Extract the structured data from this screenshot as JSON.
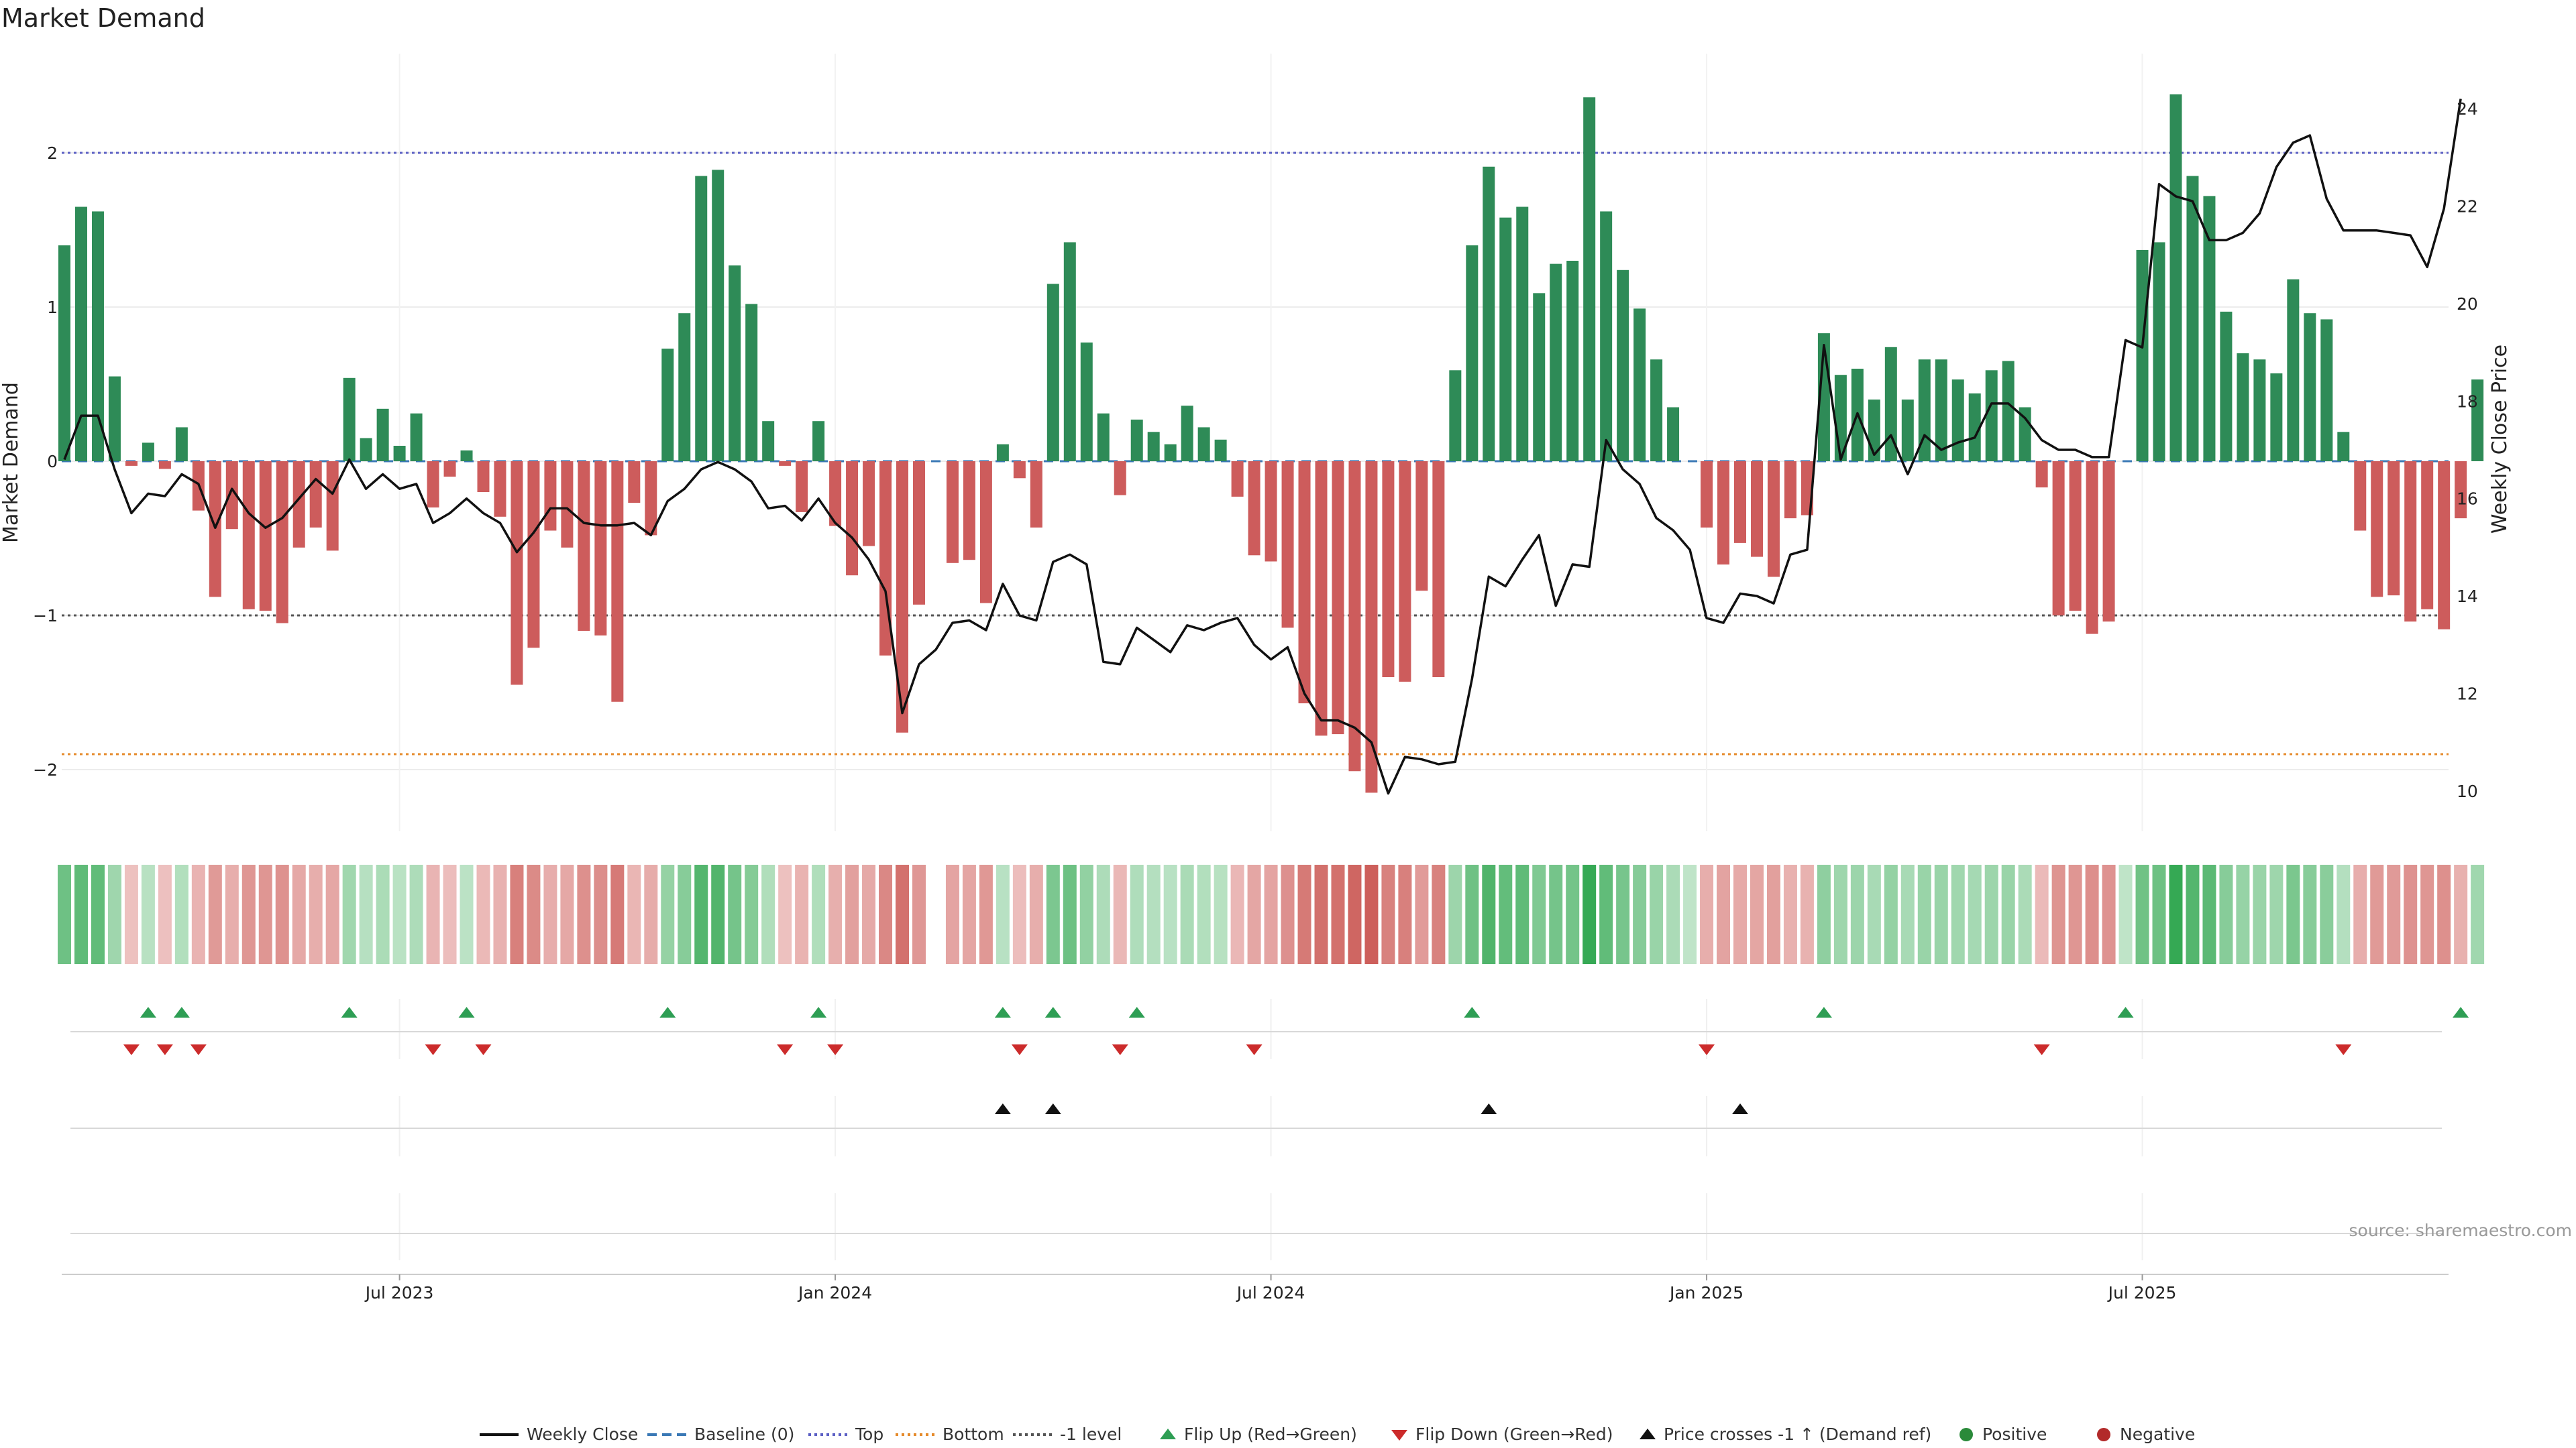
{
  "chart_data": {
    "type": "bar+line",
    "title": "Market Demand",
    "ylabel_left": "Market Demand",
    "ylabel_right": "Weekly Close Price",
    "ylim_left": [
      -2.42,
      2.6
    ],
    "ylim_right": [
      9.5,
      25.0
    ],
    "yticks_left": [
      2,
      1,
      0,
      -1,
      -2
    ],
    "ytick_labels_left": [
      "2",
      "1",
      "0",
      "−1",
      "−2"
    ],
    "yticks_right": [
      24,
      22,
      20,
      18,
      16,
      14,
      12,
      10
    ],
    "ytick_labels_right": [
      "24",
      "22",
      "20",
      "18",
      "16",
      "14",
      "12",
      "10"
    ],
    "x_labels": [
      {
        "week": 20,
        "label": "Jul 2023"
      },
      {
        "week": 46,
        "label": "Jan 2024"
      },
      {
        "week": 72,
        "label": "Jul 2024"
      },
      {
        "week": 98,
        "label": "Jan 2025"
      },
      {
        "week": 124,
        "label": "Jul 2025"
      }
    ],
    "reference_lines": {
      "top": 2.0,
      "bottom": -1.9,
      "minus_one": -1.0,
      "baseline": 0
    },
    "demand": [
      1.4,
      1.65,
      1.62,
      0.55,
      -0.03,
      0.12,
      -0.05,
      0.22,
      -0.32,
      -0.88,
      -0.44,
      -0.96,
      -0.97,
      -1.05,
      -0.56,
      -0.43,
      -0.58,
      0.54,
      0.15,
      0.34,
      0.1,
      0.31,
      -0.3,
      -0.1,
      0.07,
      -0.2,
      -0.36,
      -1.45,
      -1.21,
      -0.45,
      -0.56,
      -1.1,
      -1.13,
      -1.56,
      -0.27,
      -0.48,
      0.73,
      0.96,
      1.85,
      1.89,
      1.27,
      1.02,
      0.26,
      -0.03,
      -0.33,
      0.26,
      -0.42,
      -0.74,
      -0.55,
      -1.26,
      -1.76,
      -0.93,
      0.0,
      -0.66,
      -0.64,
      -0.92,
      0.11,
      -0.11,
      -0.43,
      1.15,
      1.42,
      0.77,
      0.31,
      -0.22,
      0.27,
      0.19,
      0.11,
      0.36,
      0.22,
      0.14,
      -0.23,
      -0.61,
      -0.65,
      -1.08,
      -1.57,
      -1.78,
      -1.77,
      -2.01,
      -2.15,
      -1.4,
      -1.43,
      -0.84,
      -1.4,
      0.59,
      1.4,
      1.91,
      1.58,
      1.65,
      1.09,
      1.28,
      1.3,
      2.36,
      1.62,
      1.24,
      0.99,
      0.66,
      0.35,
      0.0,
      -0.43,
      -0.67,
      -0.53,
      -0.62,
      -0.75,
      -0.37,
      -0.35,
      0.83,
      0.56,
      0.6,
      0.4,
      0.74,
      0.4,
      0.66,
      0.66,
      0.53,
      0.44,
      0.59,
      0.65,
      0.35,
      -0.17,
      -1.0,
      -0.97,
      -1.12,
      -1.04,
      0.0,
      1.37,
      1.42,
      2.38,
      1.85,
      1.72,
      0.97,
      0.7,
      0.66,
      0.57,
      1.18,
      0.96,
      0.92,
      0.19,
      -0.45,
      -0.88,
      -0.87,
      -1.04,
      -0.96,
      -1.09,
      -0.37,
      0.53
    ],
    "price": [
      16.8,
      17.7,
      17.7,
      16.6,
      15.7,
      16.1,
      16.05,
      16.5,
      16.3,
      15.4,
      16.2,
      15.7,
      15.4,
      15.6,
      16.0,
      16.4,
      16.1,
      16.8,
      16.2,
      16.5,
      16.2,
      16.3,
      15.5,
      15.7,
      16.0,
      15.7,
      15.5,
      14.9,
      15.3,
      15.8,
      15.8,
      15.5,
      15.45,
      15.45,
      15.5,
      15.25,
      15.95,
      16.2,
      16.6,
      16.75,
      16.6,
      16.35,
      15.8,
      15.85,
      15.55,
      16.0,
      15.5,
      15.2,
      14.75,
      14.1,
      11.6,
      12.6,
      12.9,
      13.45,
      13.5,
      13.3,
      14.25,
      13.6,
      13.5,
      14.7,
      14.85,
      14.65,
      12.65,
      12.6,
      13.35,
      13.1,
      12.85,
      13.4,
      13.3,
      13.45,
      13.55,
      13.0,
      12.7,
      12.95,
      12.0,
      11.45,
      11.45,
      11.3,
      11.0,
      9.95,
      10.7,
      10.65,
      10.55,
      10.6,
      12.3,
      14.4,
      14.2,
      14.75,
      15.25,
      13.8,
      14.65,
      14.6,
      17.2,
      16.6,
      16.3,
      15.6,
      15.35,
      14.95,
      13.55,
      13.45,
      14.05,
      14.0,
      13.85,
      14.85,
      14.95,
      19.15,
      16.8,
      17.75,
      16.9,
      17.3,
      16.5,
      17.3,
      17.0,
      17.15,
      17.25,
      17.95,
      17.95,
      17.65,
      17.2,
      17.0,
      17.0,
      16.85,
      16.85,
      19.25,
      19.1,
      22.45,
      22.2,
      22.1,
      21.3,
      21.3,
      21.45,
      21.85,
      22.8,
      23.3,
      23.45,
      22.15,
      21.5,
      21.5,
      21.5,
      21.45,
      21.4,
      20.75,
      21.95,
      24.2
    ],
    "heat_gaps": [
      52
    ],
    "flip_up_weeks": [
      5,
      7,
      17,
      24,
      36,
      45,
      56,
      59,
      64,
      84,
      105,
      123,
      143
    ],
    "flip_down_weeks": [
      4,
      6,
      8,
      22,
      25,
      43,
      46,
      57,
      63,
      71,
      98,
      118,
      136
    ],
    "price_cross_weeks": [
      56,
      59,
      85,
      100
    ],
    "legend": [
      {
        "label": "Weekly Close",
        "kind": "line",
        "color": "#111111"
      },
      {
        "label": "Baseline (0)",
        "kind": "dash",
        "color": "#3a78b5"
      },
      {
        "label": "Top",
        "kind": "dot",
        "color": "#5b5fc4"
      },
      {
        "label": "Bottom",
        "kind": "dot",
        "color": "#e58a2a"
      },
      {
        "label": "-1 level",
        "kind": "dot",
        "color": "#555555"
      },
      {
        "label": "Flip Up (Red→Green)",
        "kind": "tri-up",
        "color": "#2e9e54"
      },
      {
        "label": "Flip Down (Green→Red)",
        "kind": "tri-down",
        "color": "#cc2b2b"
      },
      {
        "label": "Price crosses -1 ↑ (Demand ref)",
        "kind": "tri-up",
        "color": "#111111"
      },
      {
        "label": "Positive",
        "kind": "circle",
        "color": "#2a8a3a"
      },
      {
        "label": "Negative",
        "kind": "circle",
        "color": "#b22a2a"
      }
    ],
    "source": "source: sharemaestro.com"
  },
  "colors": {
    "positive_bar": "#2e8b57",
    "negative_bar": "#cd5c5c",
    "price_line": "#111111",
    "top_line": "#5b5fc4",
    "bottom_line": "#e58a2a",
    "minus_one_line": "#555555",
    "baseline": "#3a78b5",
    "flip_up": "#2e9e54",
    "flip_down": "#cc2b2b",
    "price_cross": "#111111"
  }
}
